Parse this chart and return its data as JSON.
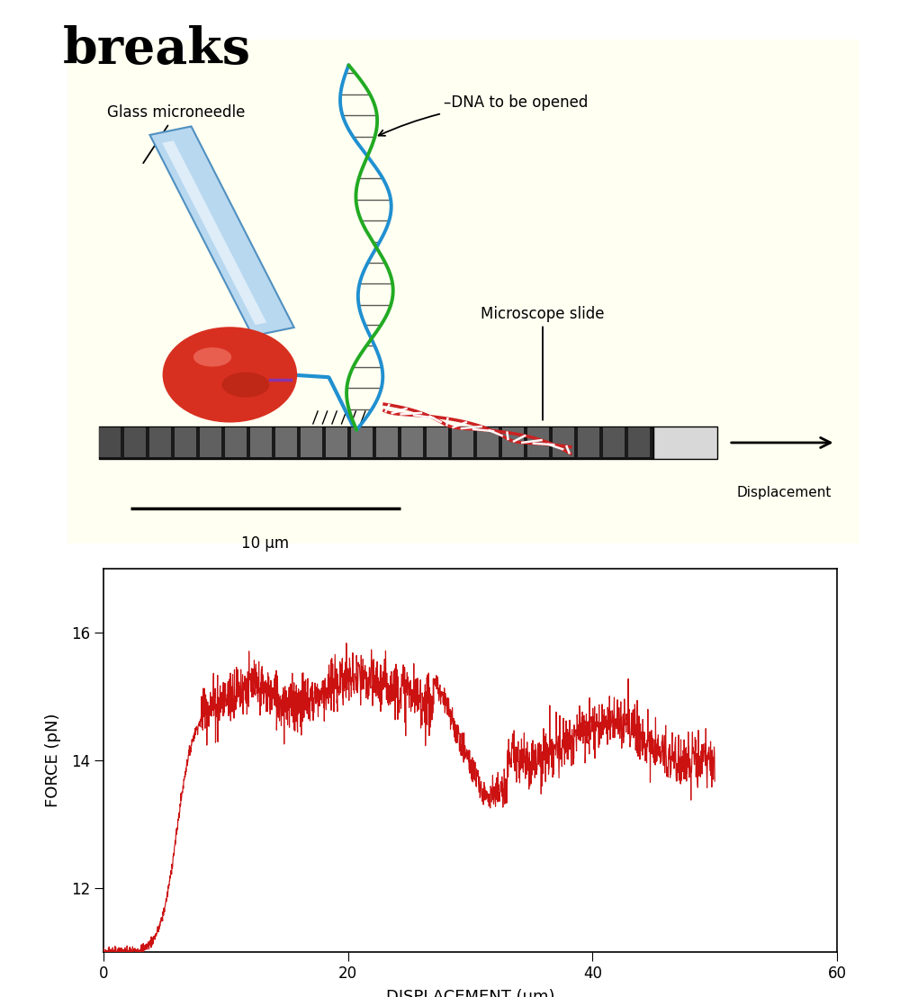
{
  "title": "breaks",
  "title_fontsize": 40,
  "bg_color_top": "#fffff2",
  "bg_color_fig": "#ffffff",
  "label_glass_microneedle": "Glass microneedle",
  "label_dna": "–DNA to be opened",
  "label_microscope": "Microscope slide",
  "label_displacement": "Displacement",
  "label_10um": "10 μm",
  "ylabel": "FORCE (pN)",
  "xlabel": "DISPLACEMENT (μm)",
  "yticks": [
    12,
    14,
    16
  ],
  "xticks": [
    0,
    20,
    40,
    60
  ],
  "xlim": [
    0,
    60
  ],
  "ylim": [
    11.0,
    17.0
  ],
  "line_color": "#cc1111",
  "axes_bg": "#ffffff"
}
